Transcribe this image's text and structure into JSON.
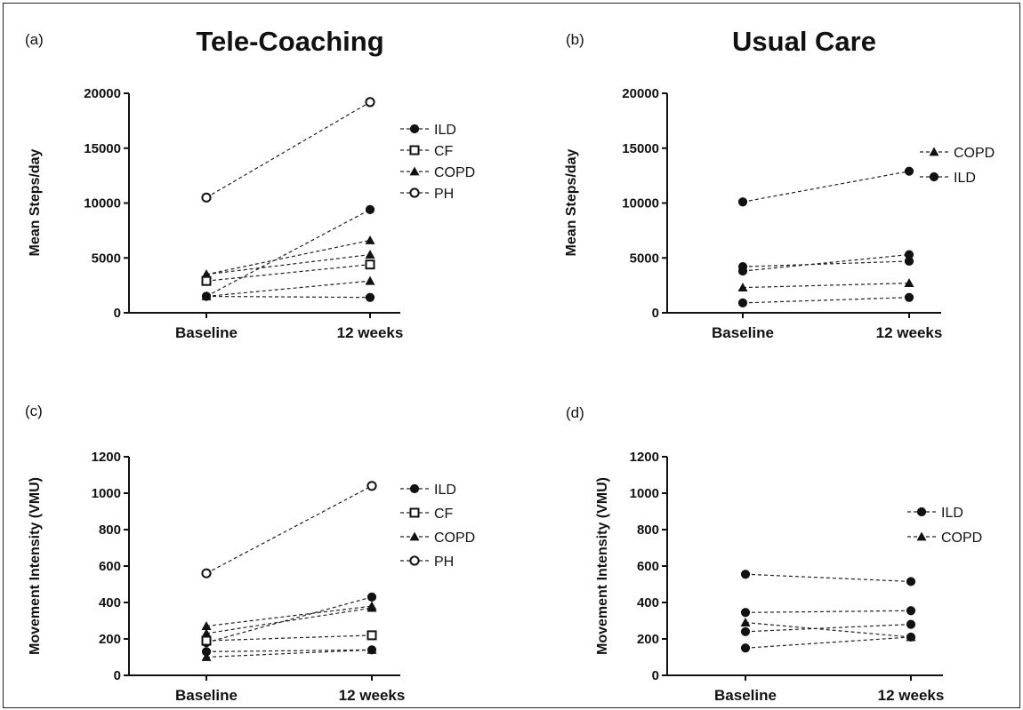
{
  "chart_data": [
    {
      "type": "line",
      "panel": "(a)",
      "title": "Tele-Coaching",
      "ylabel": "Mean Steps/day",
      "categories": [
        "Baseline",
        "12 weeks"
      ],
      "ylim": [
        0,
        20000
      ],
      "yticks": [
        0,
        5000,
        10000,
        15000,
        20000
      ],
      "legend": [
        {
          "label": "ILD",
          "marker": "circle-filled"
        },
        {
          "label": "CF",
          "marker": "square-open"
        },
        {
          "label": "COPD",
          "marker": "triangle-filled"
        },
        {
          "label": "PH",
          "marker": "circle-open"
        }
      ],
      "series": [
        {
          "group": "PH",
          "marker": "circle-open",
          "values": [
            10500,
            19200
          ]
        },
        {
          "group": "ILD",
          "marker": "circle-filled",
          "values": [
            1500,
            9400
          ]
        },
        {
          "group": "COPD",
          "marker": "triangle-filled",
          "values": [
            3500,
            6600
          ]
        },
        {
          "group": "COPD",
          "marker": "triangle-filled",
          "values": [
            3500,
            5300
          ]
        },
        {
          "group": "COPD",
          "marker": "triangle-filled",
          "values": [
            1500,
            2900
          ]
        },
        {
          "group": "CF",
          "marker": "square-open",
          "values": [
            2900,
            4400
          ]
        },
        {
          "group": "ILD",
          "marker": "circle-filled",
          "values": [
            1500,
            1400
          ]
        }
      ]
    },
    {
      "type": "line",
      "panel": "(b)",
      "title": "Usual Care",
      "ylabel": "Mean Steps/day",
      "categories": [
        "Baseline",
        "12 weeks"
      ],
      "ylim": [
        0,
        20000
      ],
      "yticks": [
        0,
        5000,
        10000,
        15000,
        20000
      ],
      "legend": [
        {
          "label": "COPD",
          "marker": "triangle-filled"
        },
        {
          "label": "ILD",
          "marker": "circle-filled"
        }
      ],
      "series": [
        {
          "group": "ILD",
          "marker": "circle-filled",
          "values": [
            10100,
            12900
          ]
        },
        {
          "group": "ILD",
          "marker": "circle-filled",
          "values": [
            4200,
            4700
          ]
        },
        {
          "group": "ILD",
          "marker": "circle-filled",
          "values": [
            3800,
            5300
          ]
        },
        {
          "group": "COPD",
          "marker": "triangle-filled",
          "values": [
            2300,
            2700
          ]
        },
        {
          "group": "ILD",
          "marker": "circle-filled",
          "values": [
            900,
            1400
          ]
        }
      ]
    },
    {
      "type": "line",
      "panel": "(c)",
      "title": "",
      "ylabel": "Movement Intensity (VMU)",
      "categories": [
        "Baseline",
        "12 weeks"
      ],
      "ylim": [
        0,
        1200
      ],
      "yticks": [
        0,
        200,
        400,
        600,
        800,
        1000,
        1200
      ],
      "legend": [
        {
          "label": "ILD",
          "marker": "circle-filled"
        },
        {
          "label": "CF",
          "marker": "square-open"
        },
        {
          "label": "COPD",
          "marker": "triangle-filled"
        },
        {
          "label": "PH",
          "marker": "circle-open"
        }
      ],
      "series": [
        {
          "group": "PH",
          "marker": "circle-open",
          "values": [
            560,
            1040
          ]
        },
        {
          "group": "ILD",
          "marker": "circle-filled",
          "values": [
            180,
            430
          ]
        },
        {
          "group": "COPD",
          "marker": "triangle-filled",
          "values": [
            270,
            380
          ]
        },
        {
          "group": "COPD",
          "marker": "triangle-filled",
          "values": [
            230,
            370
          ]
        },
        {
          "group": "CF",
          "marker": "square-open",
          "values": [
            190,
            220
          ]
        },
        {
          "group": "ILD",
          "marker": "circle-filled",
          "values": [
            130,
            140
          ]
        },
        {
          "group": "COPD",
          "marker": "triangle-filled",
          "values": [
            100,
            140
          ]
        }
      ]
    },
    {
      "type": "line",
      "panel": "(d)",
      "title": "",
      "ylabel": "Movement Intensity (VMU)",
      "categories": [
        "Baseline",
        "12 weeks"
      ],
      "ylim": [
        0,
        1200
      ],
      "yticks": [
        0,
        200,
        400,
        600,
        800,
        1000,
        1200
      ],
      "legend": [
        {
          "label": "ILD",
          "marker": "circle-filled"
        },
        {
          "label": "COPD",
          "marker": "triangle-filled"
        }
      ],
      "series": [
        {
          "group": "ILD",
          "marker": "circle-filled",
          "values": [
            555,
            515
          ]
        },
        {
          "group": "ILD",
          "marker": "circle-filled",
          "values": [
            345,
            355
          ]
        },
        {
          "group": "COPD",
          "marker": "triangle-filled",
          "values": [
            290,
            210
          ]
        },
        {
          "group": "ILD",
          "marker": "circle-filled",
          "values": [
            240,
            280
          ]
        },
        {
          "group": "ILD",
          "marker": "circle-filled",
          "values": [
            150,
            210
          ]
        }
      ]
    }
  ]
}
